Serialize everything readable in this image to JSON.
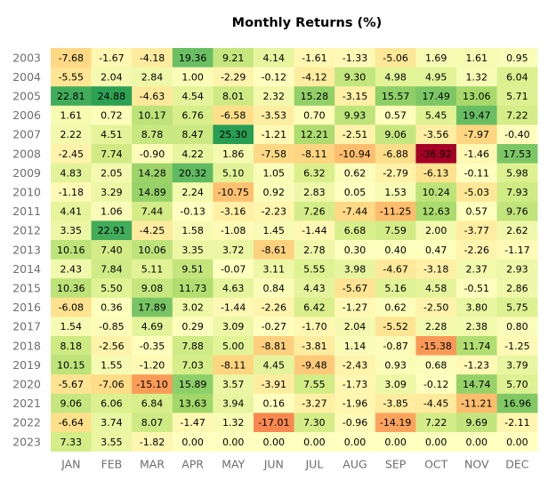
{
  "chart_data": {
    "type": "heatmap",
    "title": "Monthly Returns (%)",
    "xlabel": "",
    "ylabel": "",
    "columns": [
      "JAN",
      "FEB",
      "MAR",
      "APR",
      "MAY",
      "JUN",
      "JUL",
      "AUG",
      "SEP",
      "OCT",
      "NOV",
      "DEC"
    ],
    "rows": [
      "2003",
      "2004",
      "2005",
      "2006",
      "2007",
      "2008",
      "2009",
      "2010",
      "2011",
      "2012",
      "2013",
      "2014",
      "2015",
      "2016",
      "2017",
      "2018",
      "2019",
      "2020",
      "2021",
      "2022",
      "2023"
    ],
    "values": [
      [
        -7.68,
        -1.67,
        -4.18,
        19.36,
        9.21,
        4.14,
        -1.61,
        -1.33,
        -5.06,
        1.69,
        1.61,
        0.95
      ],
      [
        -5.55,
        2.04,
        2.84,
        1.0,
        -2.29,
        -0.12,
        -4.12,
        9.3,
        4.98,
        4.95,
        1.32,
        6.04
      ],
      [
        22.81,
        24.88,
        -4.63,
        4.54,
        8.01,
        2.32,
        15.28,
        -3.15,
        15.57,
        17.49,
        13.06,
        5.71
      ],
      [
        1.61,
        0.72,
        10.17,
        6.76,
        -6.58,
        -3.53,
        0.7,
        9.93,
        0.57,
        5.45,
        19.47,
        7.22
      ],
      [
        2.22,
        4.51,
        8.78,
        8.47,
        25.3,
        -1.21,
        12.21,
        -2.51,
        9.06,
        -3.56,
        -7.97,
        -0.4
      ],
      [
        -2.45,
        7.74,
        -0.9,
        4.22,
        1.86,
        -7.58,
        -8.11,
        -10.94,
        -6.88,
        -36.92,
        -1.46,
        17.53
      ],
      [
        4.83,
        2.05,
        14.28,
        20.32,
        5.1,
        1.05,
        6.32,
        0.62,
        -2.79,
        -6.13,
        -0.11,
        5.98
      ],
      [
        -1.18,
        3.29,
        14.89,
        2.24,
        -10.75,
        0.92,
        2.83,
        0.05,
        1.53,
        10.24,
        -5.03,
        7.93
      ],
      [
        4.41,
        1.06,
        7.44,
        -0.13,
        -3.16,
        -2.23,
        7.26,
        -7.44,
        -11.25,
        12.63,
        0.57,
        9.76
      ],
      [
        3.35,
        22.91,
        -4.25,
        1.58,
        -1.08,
        1.45,
        -1.44,
        6.68,
        7.59,
        2.0,
        -3.77,
        2.62
      ],
      [
        10.16,
        7.4,
        10.06,
        3.35,
        3.72,
        -8.61,
        2.78,
        0.3,
        0.4,
        0.47,
        -2.26,
        -1.17
      ],
      [
        2.43,
        7.84,
        5.11,
        9.51,
        -0.07,
        3.11,
        5.55,
        3.98,
        -4.67,
        -3.18,
        2.37,
        2.93
      ],
      [
        10.36,
        5.5,
        9.08,
        11.73,
        4.63,
        0.84,
        4.43,
        -5.67,
        5.16,
        4.58,
        -0.51,
        2.86
      ],
      [
        -6.08,
        0.36,
        17.89,
        3.02,
        -1.44,
        -2.26,
        6.42,
        -1.27,
        0.62,
        -2.5,
        3.8,
        5.75
      ],
      [
        1.54,
        -0.85,
        4.69,
        0.29,
        3.09,
        -0.27,
        -1.7,
        2.04,
        -5.52,
        2.28,
        2.38,
        0.8
      ],
      [
        8.18,
        -2.56,
        -0.35,
        7.88,
        5.0,
        -8.81,
        -3.81,
        1.14,
        -0.87,
        -15.38,
        11.74,
        -1.25
      ],
      [
        10.15,
        1.55,
        -1.2,
        7.03,
        -8.11,
        4.45,
        -9.48,
        -2.43,
        0.93,
        0.68,
        -1.23,
        3.79
      ],
      [
        -5.67,
        -7.06,
        -15.1,
        15.89,
        3.57,
        -3.91,
        7.55,
        -1.73,
        3.09,
        -0.12,
        14.74,
        5.7
      ],
      [
        9.06,
        6.06,
        6.84,
        13.63,
        3.94,
        0.16,
        -3.27,
        -1.96,
        -3.85,
        -4.45,
        -11.21,
        16.96
      ],
      [
        -6.64,
        3.74,
        8.07,
        -1.47,
        1.32,
        -17.01,
        7.3,
        -0.96,
        -14.19,
        7.22,
        9.69,
        -2.11
      ],
      [
        7.33,
        3.55,
        -1.82,
        0.0,
        0.0,
        0.0,
        0.0,
        0.0,
        0.0,
        0.0,
        0.0,
        0.0
      ]
    ],
    "value_format": "2 decimals",
    "colormap": "RdYlGn",
    "grid": false,
    "legend": "none",
    "colors": {
      "strong_negative": "#a50026",
      "negative": "#fdae61",
      "neutral": "#ffffbf",
      "positive": "#a6d96a",
      "strong_positive": "#1a9850"
    }
  }
}
